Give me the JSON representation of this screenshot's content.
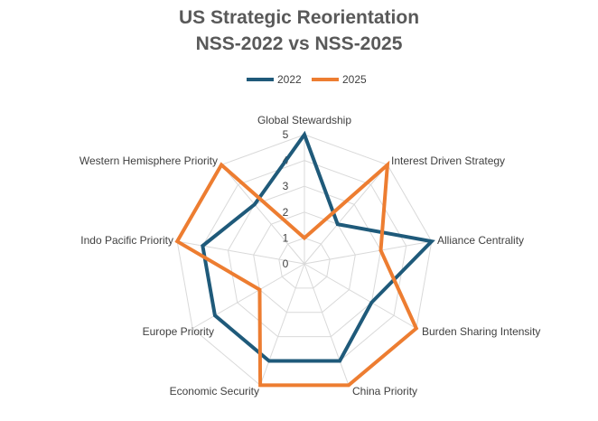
{
  "chart_data": {
    "type": "radar",
    "title_line1": "US Strategic Reorientation",
    "title_line2": "NSS-2022 vs NSS-2025",
    "legend_position": "top",
    "categories": [
      "Global Stewardship",
      "Interest Driven Strategy",
      "Alliance Centrality",
      "Burden Sharing Intensity",
      "China Priority",
      "Economic Security",
      "Europe Priority",
      "Indo Pacific Priority",
      "Western Hemisphere Priority"
    ],
    "series": [
      {
        "name": "2022",
        "color": "#1f5a7a",
        "values": [
          5,
          2,
          5,
          3,
          4,
          4,
          4,
          4,
          3
        ]
      },
      {
        "name": "2025",
        "color": "#ed7d31",
        "values": [
          1,
          5,
          3,
          5,
          5,
          5,
          2,
          5,
          5
        ]
      }
    ],
    "rlim": [
      0,
      5
    ],
    "ticks": [
      "0",
      "1",
      "2",
      "3",
      "4",
      "5"
    ],
    "grid": true
  }
}
